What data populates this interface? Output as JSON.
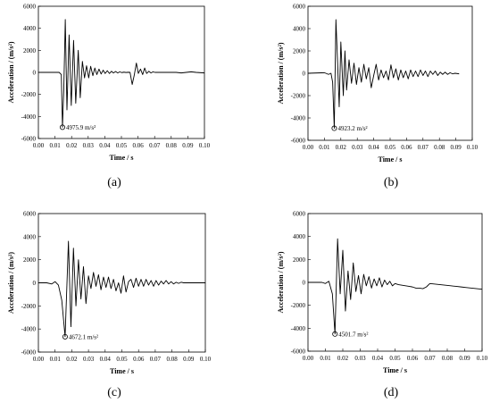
{
  "chart_data": [
    {
      "type": "line",
      "caption": "(a)",
      "xlabel": "Time / s",
      "ylabel": "Acceleration / (m/s²)",
      "xlim": [
        0.0,
        0.1
      ],
      "ylim": [
        -6000,
        6000
      ],
      "x_ticks": [
        "0.00",
        "0.01",
        "0.02",
        "0.03",
        "0.04",
        "0.05",
        "0.06",
        "0.07",
        "0.08",
        "0.09",
        "0.10"
      ],
      "y_ticks": [
        "6000",
        "4000",
        "2000",
        "0",
        "-2000",
        "-4000",
        "-6000"
      ],
      "annotation": {
        "text": "4975.9 m/s²",
        "x": 0.0145,
        "y": -4976
      },
      "series": [
        {
          "x": [
            0,
            0.01,
            0.0125,
            0.0138,
            0.0145,
            0.0153,
            0.0162,
            0.0172,
            0.0185,
            0.0198,
            0.0212,
            0.0225,
            0.024,
            0.0252,
            0.0265,
            0.0278,
            0.029,
            0.0303,
            0.0315,
            0.0328,
            0.034,
            0.0352,
            0.0365,
            0.0378,
            0.039,
            0.0402,
            0.0415,
            0.0428,
            0.044,
            0.0452,
            0.0465,
            0.0478,
            0.049,
            0.0502,
            0.0515,
            0.0528,
            0.054,
            0.0552,
            0.0565,
            0.0578,
            0.059,
            0.0602,
            0.0615,
            0.0628,
            0.064,
            0.0652,
            0.0665,
            0.0678,
            0.069,
            0.0702,
            0.0715,
            0.0728,
            0.074,
            0.0752,
            0.0765,
            0.0778,
            0.079,
            0.0802,
            0.0815,
            0.083,
            0.086,
            0.089,
            0.092,
            0.095,
            0.098,
            0.1
          ],
          "y": [
            0,
            0,
            0,
            -200,
            -4976,
            -1500,
            4800,
            -3400,
            3400,
            -3000,
            2900,
            -2800,
            2000,
            -2300,
            1000,
            -500,
            600,
            -500,
            550,
            -300,
            400,
            -200,
            300,
            -150,
            200,
            -100,
            150,
            -100,
            100,
            -50,
            80,
            -50,
            50,
            -20,
            20,
            -10,
            10,
            0,
            -1100,
            -200,
            850,
            -100,
            300,
            -200,
            400,
            -100,
            100,
            -50,
            50,
            0,
            0,
            0,
            0,
            0,
            0,
            0,
            0,
            0,
            0,
            0,
            -50,
            0,
            50,
            0,
            -30,
            -50
          ]
        }
      ]
    },
    {
      "type": "line",
      "caption": "(b)",
      "xlabel": "Time / s",
      "ylabel": "Acceleration / (m/s²)",
      "xlim": [
        0.0,
        0.1
      ],
      "ylim": [
        -6000,
        6000
      ],
      "x_ticks": [
        "0.00",
        "0.01",
        "0.02",
        "0.03",
        "0.04",
        "0.05",
        "0.06",
        "0.07",
        "0.08",
        "0.09",
        "0.10"
      ],
      "y_ticks": [
        "6000",
        "4000",
        "2000",
        "0",
        "-2000",
        "-4000",
        "-6000"
      ],
      "annotation": {
        "text": "4923.2 m/s²",
        "x": 0.016,
        "y": -4923
      },
      "series": [
        {
          "x": [
            0,
            0.01,
            0.0125,
            0.014,
            0.015,
            0.016,
            0.017,
            0.018,
            0.019,
            0.02,
            0.0215,
            0.0225,
            0.0235,
            0.025,
            0.0265,
            0.028,
            0.0295,
            0.031,
            0.0325,
            0.034,
            0.0355,
            0.037,
            0.0385,
            0.04,
            0.0415,
            0.043,
            0.0445,
            0.046,
            0.0475,
            0.049,
            0.0505,
            0.052,
            0.0535,
            0.055,
            0.0565,
            0.058,
            0.0595,
            0.061,
            0.0625,
            0.064,
            0.0655,
            0.067,
            0.0685,
            0.07,
            0.0715,
            0.073,
            0.0745,
            0.076,
            0.0775,
            0.079,
            0.0805,
            0.082,
            0.0835,
            0.085,
            0.0865,
            0.088,
            0.0895,
            0.092
          ],
          "y": [
            0,
            50,
            -100,
            0,
            -800,
            -4923,
            4800,
            1000,
            -3000,
            2800,
            -2000,
            2000,
            -1500,
            1200,
            -900,
            900,
            -1000,
            500,
            -800,
            800,
            -500,
            500,
            -1300,
            -200,
            800,
            -600,
            300,
            -400,
            200,
            -600,
            750,
            -400,
            400,
            -600,
            300,
            -400,
            200,
            -500,
            300,
            -300,
            200,
            -300,
            300,
            -200,
            200,
            -300,
            200,
            -100,
            200,
            -200,
            100,
            -100,
            100,
            -100,
            50,
            -50,
            0,
            -50
          ]
        }
      ]
    },
    {
      "type": "line",
      "caption": "(c)",
      "xlabel": "Time / s",
      "ylabel": "Acceleration / (m/s²)",
      "xlim": [
        0.0,
        0.1
      ],
      "ylim": [
        -6000,
        6000
      ],
      "x_ticks": [
        "0.00",
        "0.01",
        "0.02",
        "0.03",
        "0.04",
        "0.05",
        "0.06",
        "0.07",
        "0.08",
        "0.09",
        "0.10"
      ],
      "y_ticks": [
        "6000",
        "4000",
        "2000",
        "0",
        "-2000",
        "-4000",
        "-6000"
      ],
      "annotation": {
        "text": "4672.1 m/s²",
        "x": 0.016,
        "y": -4672
      },
      "series": [
        {
          "x": [
            0,
            0.005,
            0.008,
            0.01,
            0.012,
            0.014,
            0.016,
            0.018,
            0.0195,
            0.021,
            0.0225,
            0.024,
            0.0255,
            0.027,
            0.0285,
            0.03,
            0.0315,
            0.033,
            0.0345,
            0.036,
            0.0375,
            0.039,
            0.0405,
            0.042,
            0.0435,
            0.045,
            0.0465,
            0.048,
            0.0495,
            0.051,
            0.0525,
            0.054,
            0.0555,
            0.057,
            0.0585,
            0.06,
            0.0615,
            0.063,
            0.0645,
            0.066,
            0.0675,
            0.069,
            0.0705,
            0.072,
            0.0735,
            0.075,
            0.0765,
            0.078,
            0.0795,
            0.081,
            0.0825,
            0.084,
            0.0855,
            0.087,
            0.09,
            0.093,
            0.096,
            0.1
          ],
          "y": [
            0,
            0,
            -100,
            100,
            -200,
            -1500,
            -4672,
            3600,
            -3800,
            3000,
            -2000,
            2000,
            -1400,
            1400,
            -1800,
            600,
            -500,
            900,
            -300,
            700,
            -600,
            500,
            -400,
            500,
            -500,
            300,
            -700,
            0,
            -900,
            600,
            -800,
            100,
            300,
            -400,
            400,
            -300,
            300,
            -300,
            300,
            -200,
            200,
            -300,
            200,
            -200,
            150,
            -100,
            200,
            -100,
            100,
            -100,
            50,
            -50,
            50,
            0,
            0,
            0,
            0,
            0
          ]
        }
      ]
    },
    {
      "type": "line",
      "caption": "(d)",
      "xlabel": "Time / s",
      "ylabel": "Acceleration / (m/s²)",
      "xlim": [
        0.0,
        0.1
      ],
      "ylim": [
        -6000,
        6000
      ],
      "x_ticks": [
        "0.00",
        "0.01",
        "0.02",
        "0.03",
        "0.04",
        "0.05",
        "0.06",
        "0.07",
        "0.08",
        "0.09",
        "0.10"
      ],
      "y_ticks": [
        "6000",
        "4000",
        "2000",
        "0",
        "-2000",
        "-4000",
        "-6000"
      ],
      "annotation": {
        "text": "4501.7 m/s²",
        "x": 0.0155,
        "y": -4502
      },
      "series": [
        {
          "x": [
            0,
            0.008,
            0.01,
            0.012,
            0.014,
            0.0155,
            0.017,
            0.0185,
            0.02,
            0.0215,
            0.023,
            0.0245,
            0.026,
            0.0275,
            0.029,
            0.0305,
            0.032,
            0.0335,
            0.035,
            0.0365,
            0.038,
            0.0395,
            0.041,
            0.0425,
            0.044,
            0.0455,
            0.047,
            0.0485,
            0.05,
            0.052,
            0.054,
            0.056,
            0.058,
            0.06,
            0.062,
            0.064,
            0.066,
            0.068,
            0.07,
            0.073,
            0.076,
            0.079,
            0.082,
            0.085,
            0.088,
            0.091,
            0.094,
            0.097,
            0.1
          ],
          "y": [
            0,
            0,
            -100,
            100,
            -1000,
            -4502,
            3800,
            -1000,
            2800,
            -2500,
            1000,
            -1500,
            1700,
            -800,
            600,
            -1000,
            700,
            -300,
            500,
            -500,
            300,
            -300,
            400,
            -400,
            200,
            -200,
            100,
            -300,
            -100,
            -200,
            -250,
            -300,
            -350,
            -400,
            -500,
            -500,
            -550,
            -400,
            -100,
            -150,
            -200,
            -250,
            -300,
            -350,
            -400,
            -450,
            -500,
            -550,
            -600
          ]
        }
      ]
    }
  ]
}
